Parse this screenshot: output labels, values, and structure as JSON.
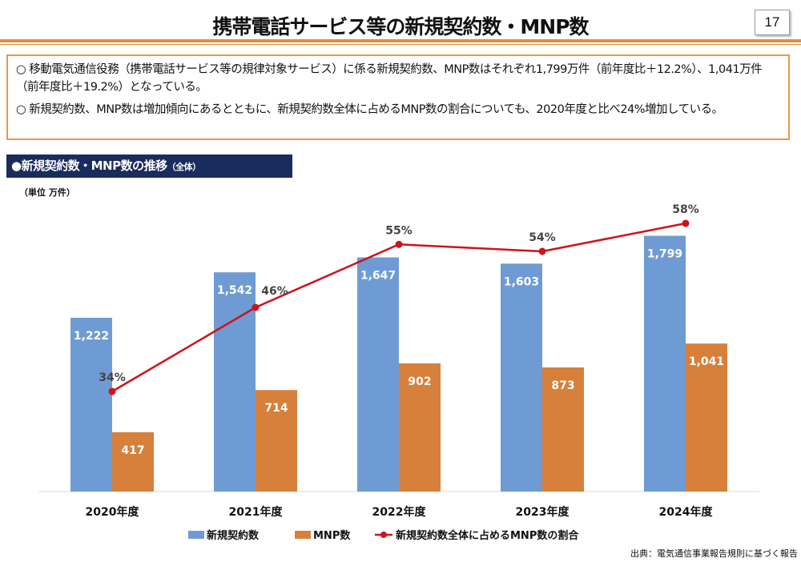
{
  "header": {
    "title": "携帯電話サービス等の新規契約数・MNP数",
    "page_number": "17"
  },
  "summary": [
    "○  移動電気通信役務（携帯電話サービス等の規律対象サービス）に係る新規契約数、MNP数はそれぞれ1,799万件（前年度比＋12.2%）、1,041万件（前年度比＋19.2%）となっている。",
    "○  新規契約数、MNP数は増加傾向にあるとともに、新規契約数全体に占めるMNP数の割合についても、2020年度と比べ24%増加している。"
  ],
  "section": {
    "title": "●新規契約数・MNP数の推移",
    "subtitle": "（全体）"
  },
  "unit_label": "（単位  万件）",
  "source": "出典：電気通信事業報告規則に基づく報告",
  "chart_data": {
    "type": "bar+line",
    "categories": [
      "2020年度",
      "2021年度",
      "2022年度",
      "2023年度",
      "2024年度"
    ],
    "series": [
      {
        "name": "新規契約数",
        "type": "bar",
        "color": "#6f9bd4",
        "values": [
          1222,
          1542,
          1647,
          1603,
          1799
        ],
        "labels": [
          "1,222",
          "1,542",
          "1,647",
          "1,603",
          "1,799"
        ]
      },
      {
        "name": "MNP数",
        "type": "bar",
        "color": "#d6803b",
        "values": [
          417,
          714,
          902,
          873,
          1041
        ],
        "labels": [
          "417",
          "714",
          "902",
          "873",
          "1,041"
        ]
      },
      {
        "name": "新規契約数全体に占めるMNP数の割合",
        "type": "line",
        "color": "#d0121b",
        "values": [
          34,
          46,
          55,
          54,
          58
        ],
        "labels": [
          "34%",
          "46%",
          "55%",
          "54%",
          "58%"
        ]
      }
    ],
    "legend": "bottom",
    "grid": false
  }
}
